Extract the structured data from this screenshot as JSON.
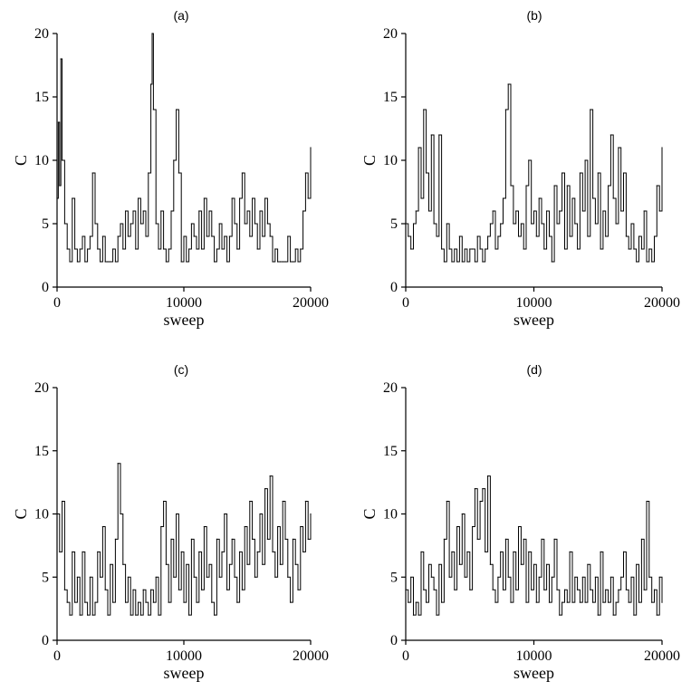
{
  "chart_data": [
    {
      "type": "line",
      "title": "(a)",
      "xlabel": "sweep",
      "ylabel": "C",
      "xlim": [
        0,
        20000
      ],
      "ylim": [
        0,
        20
      ],
      "xticks": [
        "0",
        "10000",
        "20000"
      ],
      "yticks": [
        "0",
        "5",
        "10",
        "15",
        "20"
      ],
      "series": [
        {
          "x": [
            0,
            100,
            200,
            300,
            400,
            600,
            800,
            1000,
            1200,
            1400,
            1600,
            1800,
            2000,
            2200,
            2400,
            2600,
            2800,
            3000,
            3200,
            3400,
            3600,
            3800,
            4000,
            4200,
            4400,
            4600,
            4800,
            5000,
            5200,
            5400,
            5600,
            5800,
            6000,
            6200,
            6400,
            6600,
            6800,
            7000,
            7200,
            7400,
            7500,
            7600,
            7800,
            8000,
            8200,
            8400,
            8600,
            8800,
            9000,
            9200,
            9400,
            9600,
            9800,
            10000,
            10200,
            10400,
            10600,
            10800,
            11000,
            11200,
            11400,
            11600,
            11800,
            12000,
            12200,
            12400,
            12600,
            12800,
            13000,
            13200,
            13400,
            13600,
            13800,
            14000,
            14200,
            14400,
            14600,
            14800,
            15000,
            15200,
            15400,
            15600,
            15800,
            16000,
            16200,
            16400,
            16600,
            16800,
            17000,
            17200,
            17400,
            17600,
            17800,
            18000,
            18200,
            18400,
            18600,
            18800,
            19000,
            19200,
            19400,
            19600,
            19800,
            20000
          ],
          "values": [
            7,
            13,
            8,
            18,
            10,
            5,
            3,
            2,
            7,
            3,
            2,
            3,
            4,
            2,
            3,
            4,
            9,
            5,
            3,
            2,
            4,
            2,
            2,
            2,
            3,
            2,
            4,
            5,
            3,
            6,
            4,
            5,
            6,
            3,
            7,
            5,
            6,
            4,
            9,
            16,
            20,
            14,
            5,
            3,
            6,
            3,
            2,
            3,
            6,
            10,
            14,
            9,
            2,
            4,
            2,
            3,
            5,
            4,
            3,
            6,
            3,
            7,
            4,
            6,
            4,
            2,
            3,
            5,
            3,
            4,
            2,
            4,
            7,
            5,
            3,
            7,
            9,
            5,
            6,
            4,
            7,
            5,
            3,
            6,
            4,
            7,
            5,
            4,
            2,
            3,
            2,
            2,
            2,
            2,
            4,
            2,
            2,
            3,
            2,
            3,
            6,
            9,
            7,
            11
          ]
        }
      ]
    },
    {
      "type": "line",
      "title": "(b)",
      "xlabel": "sweep",
      "ylabel": "C",
      "xlim": [
        0,
        20000
      ],
      "ylim": [
        0,
        20
      ],
      "xticks": [
        "0",
        "10000",
        "20000"
      ],
      "yticks": [
        "0",
        "5",
        "10",
        "15",
        "20"
      ],
      "series": [
        {
          "x": [
            0,
            200,
            400,
            600,
            800,
            1000,
            1200,
            1400,
            1600,
            1800,
            2000,
            2200,
            2400,
            2600,
            2800,
            3000,
            3200,
            3400,
            3600,
            3800,
            4000,
            4200,
            4400,
            4600,
            4800,
            5000,
            5200,
            5400,
            5600,
            5800,
            6000,
            6200,
            6400,
            6600,
            6800,
            7000,
            7200,
            7400,
            7600,
            7800,
            8000,
            8200,
            8400,
            8600,
            8800,
            9000,
            9200,
            9400,
            9600,
            9800,
            10000,
            10200,
            10400,
            10600,
            10800,
            11000,
            11200,
            11400,
            11600,
            11800,
            12000,
            12200,
            12400,
            12600,
            12800,
            13000,
            13200,
            13400,
            13600,
            13800,
            14000,
            14200,
            14400,
            14600,
            14800,
            15000,
            15200,
            15400,
            15600,
            15800,
            16000,
            16200,
            16400,
            16600,
            16800,
            17000,
            17200,
            17400,
            17600,
            17800,
            18000,
            18200,
            18400,
            18600,
            18800,
            19000,
            19200,
            19400,
            19600,
            19800,
            20000
          ],
          "values": [
            5,
            4,
            3,
            5,
            6,
            11,
            7,
            14,
            9,
            6,
            12,
            5,
            4,
            12,
            3,
            2,
            5,
            3,
            2,
            3,
            2,
            4,
            2,
            3,
            2,
            3,
            3,
            2,
            4,
            3,
            2,
            3,
            4,
            5,
            6,
            3,
            4,
            5,
            7,
            14,
            16,
            8,
            5,
            6,
            4,
            5,
            3,
            8,
            10,
            5,
            6,
            4,
            7,
            5,
            3,
            6,
            4,
            2,
            8,
            5,
            6,
            9,
            3,
            8,
            4,
            7,
            5,
            3,
            9,
            6,
            10,
            4,
            14,
            7,
            5,
            9,
            3,
            6,
            4,
            8,
            12,
            7,
            5,
            11,
            6,
            9,
            4,
            3,
            5,
            3,
            2,
            4,
            3,
            6,
            2,
            3,
            2,
            4,
            8,
            6,
            11
          ]
        }
      ]
    },
    {
      "type": "line",
      "title": "(c)",
      "xlabel": "sweep",
      "ylabel": "C",
      "xlim": [
        0,
        20000
      ],
      "ylim": [
        0,
        20
      ],
      "xticks": [
        "0",
        "10000",
        "20000"
      ],
      "yticks": [
        "0",
        "5",
        "10",
        "15",
        "20"
      ],
      "series": [
        {
          "x": [
            0,
            200,
            400,
            600,
            800,
            1000,
            1200,
            1400,
            1600,
            1800,
            2000,
            2200,
            2400,
            2600,
            2800,
            3000,
            3200,
            3400,
            3600,
            3800,
            4000,
            4200,
            4400,
            4600,
            4800,
            5000,
            5200,
            5400,
            5600,
            5800,
            6000,
            6200,
            6400,
            6600,
            6800,
            7000,
            7200,
            7400,
            7600,
            7800,
            8000,
            8200,
            8400,
            8600,
            8800,
            9000,
            9200,
            9400,
            9600,
            9800,
            10000,
            10200,
            10400,
            10600,
            10800,
            11000,
            11200,
            11400,
            11600,
            11800,
            12000,
            12200,
            12400,
            12600,
            12800,
            13000,
            13200,
            13400,
            13600,
            13800,
            14000,
            14200,
            14400,
            14600,
            14800,
            15000,
            15200,
            15400,
            15600,
            15800,
            16000,
            16200,
            16400,
            16600,
            16800,
            17000,
            17200,
            17400,
            17600,
            17800,
            18000,
            18200,
            18400,
            18600,
            18800,
            19000,
            19200,
            19400,
            19600,
            19800,
            20000
          ],
          "values": [
            10,
            7,
            11,
            4,
            3,
            2,
            7,
            3,
            5,
            2,
            7,
            3,
            2,
            5,
            2,
            3,
            7,
            5,
            9,
            4,
            2,
            6,
            3,
            8,
            14,
            10,
            6,
            3,
            5,
            2,
            4,
            2,
            3,
            2,
            4,
            3,
            2,
            4,
            3,
            5,
            2,
            9,
            11,
            6,
            3,
            8,
            5,
            10,
            4,
            7,
            3,
            6,
            2,
            8,
            5,
            3,
            7,
            4,
            9,
            5,
            6,
            3,
            2,
            8,
            5,
            7,
            10,
            4,
            6,
            8,
            5,
            3,
            7,
            4,
            9,
            6,
            11,
            8,
            5,
            7,
            10,
            6,
            12,
            8,
            13,
            7,
            5,
            9,
            6,
            11,
            8,
            5,
            3,
            8,
            6,
            4,
            9,
            7,
            11,
            8,
            10
          ]
        }
      ]
    },
    {
      "type": "line",
      "title": "(d)",
      "xlabel": "sweep",
      "ylabel": "C",
      "xlim": [
        0,
        20000
      ],
      "ylim": [
        0,
        20
      ],
      "xticks": [
        "0",
        "10000",
        "20000"
      ],
      "yticks": [
        "0",
        "5",
        "10",
        "15",
        "20"
      ],
      "series": [
        {
          "x": [
            0,
            200,
            400,
            600,
            800,
            1000,
            1200,
            1400,
            1600,
            1800,
            2000,
            2200,
            2400,
            2600,
            2800,
            3000,
            3200,
            3400,
            3600,
            3800,
            4000,
            4200,
            4400,
            4600,
            4800,
            5000,
            5200,
            5400,
            5600,
            5800,
            6000,
            6200,
            6400,
            6600,
            6800,
            7000,
            7200,
            7400,
            7600,
            7800,
            8000,
            8200,
            8400,
            8600,
            8800,
            9000,
            9200,
            9400,
            9600,
            9800,
            10000,
            10200,
            10400,
            10600,
            10800,
            11000,
            11200,
            11400,
            11600,
            11800,
            12000,
            12200,
            12400,
            12600,
            12800,
            13000,
            13200,
            13400,
            13600,
            13800,
            14000,
            14200,
            14400,
            14600,
            14800,
            15000,
            15200,
            15400,
            15600,
            15800,
            16000,
            16200,
            16400,
            16600,
            16800,
            17000,
            17200,
            17400,
            17600,
            17800,
            18000,
            18200,
            18400,
            18600,
            18800,
            19000,
            19200,
            19400,
            19600,
            19800,
            20000
          ],
          "values": [
            4,
            3,
            5,
            2,
            3,
            2,
            7,
            4,
            3,
            6,
            5,
            4,
            2,
            6,
            3,
            8,
            11,
            5,
            7,
            4,
            9,
            6,
            10,
            5,
            7,
            4,
            9,
            12,
            8,
            11,
            12,
            7,
            13,
            6,
            4,
            3,
            5,
            7,
            4,
            8,
            5,
            3,
            7,
            4,
            9,
            6,
            8,
            3,
            7,
            4,
            6,
            3,
            5,
            8,
            4,
            6,
            3,
            5,
            8,
            4,
            2,
            3,
            4,
            3,
            7,
            3,
            5,
            4,
            3,
            5,
            3,
            6,
            4,
            3,
            5,
            2,
            7,
            3,
            4,
            3,
            5,
            2,
            3,
            4,
            5,
            7,
            4,
            3,
            5,
            2,
            6,
            3,
            8,
            4,
            11,
            5,
            3,
            4,
            2,
            5,
            3
          ]
        }
      ]
    }
  ]
}
